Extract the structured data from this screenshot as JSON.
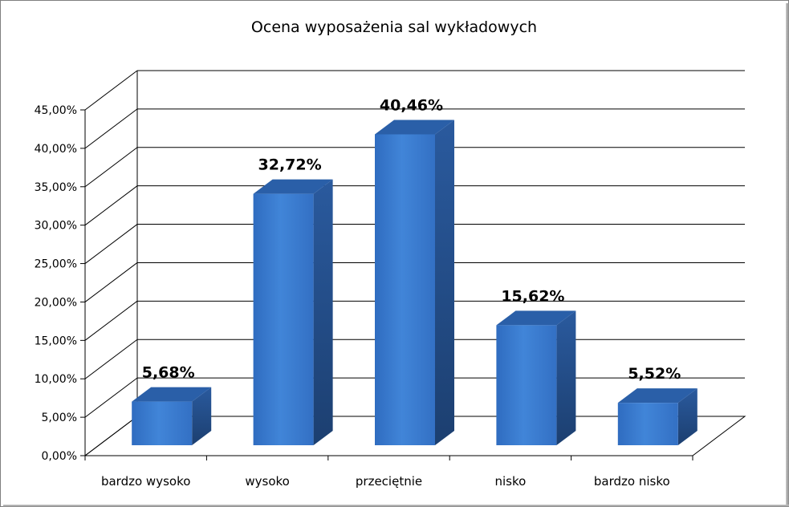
{
  "chart_data": {
    "type": "bar",
    "title": "Ocena wyposażenia sal wykładowych",
    "categories": [
      "bardzo wysoko",
      "wysoko",
      "przeciętnie",
      "nisko",
      "bardzo nisko"
    ],
    "values": [
      5.68,
      32.72,
      40.46,
      15.62,
      5.52
    ],
    "value_labels": [
      "5,68%",
      "32,72%",
      "40,46%",
      "15,62%",
      "5,52%"
    ],
    "y_ticks": [
      "0,00%",
      "5,00%",
      "10,00%",
      "15,00%",
      "20,00%",
      "25,00%",
      "30,00%",
      "35,00%",
      "40,00%",
      "45,00%"
    ],
    "ylim": [
      0,
      45
    ],
    "grid": true,
    "legend": "none",
    "style": "3d-column",
    "colors": {
      "bar_front": "#3a78cc",
      "bar_side": "#1f4f8e",
      "bar_top": "#2a5fa8",
      "grid": "#000000"
    }
  }
}
